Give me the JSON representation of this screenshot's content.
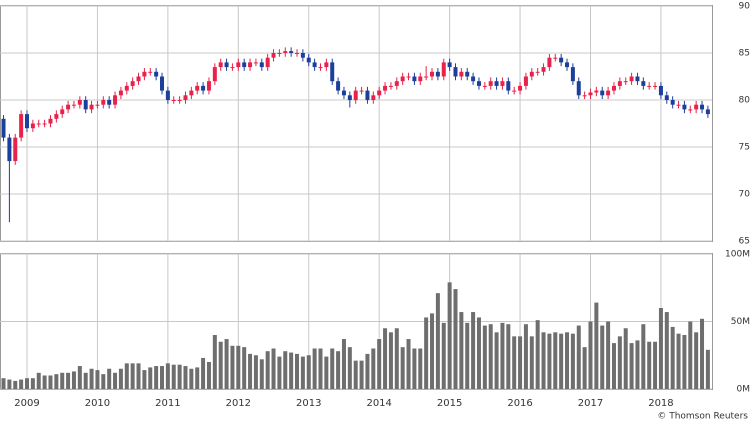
{
  "chart_data": [
    {
      "type": "candlestick",
      "open": [
        78,
        76,
        73.5,
        76,
        78.5,
        77,
        77.5,
        77.5,
        77.5,
        78,
        78.5,
        79,
        79.5,
        79.5,
        80,
        79,
        79.5,
        79.5,
        80,
        79.5,
        80.5,
        81,
        81.5,
        82,
        82.5,
        83,
        83,
        82.5,
        81,
        80,
        80,
        80,
        80.5,
        81,
        81.5,
        81,
        82,
        83.5,
        84,
        83.5,
        83.5,
        84,
        83.5,
        84,
        84,
        83.5,
        84.5,
        85,
        85,
        85.2,
        85,
        85,
        84.5,
        84,
        83.5,
        83.5,
        84,
        82,
        81,
        80.5,
        80,
        81,
        81,
        80,
        80.5,
        81,
        81.5,
        81.5,
        82,
        82.5,
        82.5,
        82,
        82.5,
        82.5,
        83,
        82.5,
        84,
        83.5,
        82.5,
        83,
        82.5,
        82,
        81.5,
        81.5,
        82,
        81.5,
        82,
        81,
        81,
        81.5,
        82.5,
        83,
        83,
        83.5,
        84.5,
        84.5,
        84,
        83.5,
        82,
        80.5,
        80.5,
        80.8,
        81,
        80.5,
        81,
        81.5,
        82,
        82,
        82.5,
        82,
        81.5,
        81.5,
        81.5,
        80.5,
        80,
        79.5,
        79.5,
        79,
        79,
        79.5,
        79
      ],
      "high": [
        78.4,
        76.4,
        76.4,
        78.9,
        78.9,
        77.9,
        77.9,
        77.9,
        78.4,
        78.9,
        79.4,
        79.9,
        79.9,
        80.4,
        80.4,
        79.9,
        79.9,
        80.4,
        80.4,
        80.9,
        81.4,
        81.9,
        82.4,
        82.9,
        83.4,
        83.4,
        83.4,
        82.9,
        81.4,
        80.4,
        80.4,
        80.9,
        81.4,
        81.9,
        81.9,
        82.4,
        83.9,
        84.4,
        84.4,
        83.9,
        84.4,
        84.4,
        84.4,
        84.4,
        84.4,
        84.9,
        85.4,
        85.4,
        85.6,
        85.6,
        85.4,
        85.4,
        84.9,
        84.4,
        83.9,
        84.4,
        84.4,
        82.4,
        81.4,
        80.9,
        81.4,
        81.4,
        81.4,
        80.9,
        81.4,
        81.9,
        81.9,
        82.4,
        82.9,
        82.9,
        82.9,
        82.9,
        83.6,
        83.4,
        83.4,
        84.4,
        84.4,
        83.9,
        83.4,
        83.4,
        82.9,
        82.4,
        81.9,
        82.4,
        82.4,
        82.4,
        82.4,
        81.4,
        81.9,
        82.9,
        83.4,
        83.4,
        83.9,
        84.9,
        84.9,
        84.9,
        84.4,
        83.9,
        82.4,
        80.9,
        81.2,
        81.4,
        81.4,
        81.4,
        81.9,
        82.4,
        82.4,
        82.9,
        82.9,
        82.4,
        81.9,
        81.9,
        81.9,
        80.9,
        80.4,
        79.9,
        79.9,
        79.4,
        79.9,
        79.9,
        79.4
      ],
      "low": [
        75.6,
        67,
        73.1,
        75.6,
        76.6,
        76.6,
        77.1,
        77.1,
        77.1,
        77.6,
        78.1,
        78.6,
        79.1,
        79.1,
        78.6,
        78.6,
        79.1,
        79.1,
        79.1,
        79.1,
        80.1,
        80.6,
        81.1,
        81.6,
        82.1,
        82.6,
        82.1,
        80.6,
        79.6,
        79.6,
        79.6,
        79.6,
        80.1,
        80.6,
        80.6,
        80.6,
        81.6,
        83.1,
        83.1,
        83.1,
        83.1,
        83.1,
        83.1,
        83.6,
        83.1,
        83.1,
        84.1,
        84.6,
        84.6,
        84.6,
        84.6,
        84.1,
        83.6,
        83.1,
        83.1,
        83.1,
        81.6,
        80.6,
        80.1,
        79.2,
        79.6,
        80.6,
        79.6,
        79.6,
        80.1,
        80.6,
        81.1,
        81.1,
        81.6,
        82.1,
        81.6,
        81.6,
        82.1,
        82.1,
        82.1,
        82.1,
        83.1,
        82.1,
        82.1,
        82.1,
        81.6,
        81.1,
        81.1,
        81.1,
        81.1,
        81.1,
        80.6,
        80.6,
        80.6,
        81.1,
        82.1,
        82.6,
        82.6,
        83.1,
        84.1,
        83.6,
        83.1,
        81.6,
        80.1,
        80.1,
        80.1,
        80.4,
        80.1,
        80.1,
        80.6,
        81.1,
        81.6,
        81.6,
        81.6,
        81.1,
        81.1,
        81.1,
        80.1,
        79.6,
        79.1,
        79.1,
        78.6,
        78.6,
        78.6,
        78.6,
        78.1
      ],
      "close": [
        76,
        73.5,
        76,
        78.5,
        77,
        77.5,
        77.5,
        77.5,
        78,
        78.5,
        79,
        79.5,
        79.5,
        80,
        79,
        79.5,
        79.5,
        80,
        79.5,
        80.5,
        81,
        81.5,
        82,
        82.5,
        83,
        83,
        82.5,
        81,
        80,
        80,
        80,
        80.5,
        81,
        81.5,
        81,
        82,
        83.5,
        84,
        83.5,
        83.5,
        84,
        83.5,
        84,
        84,
        83.5,
        84.5,
        85,
        85,
        85.2,
        85,
        85,
        84.5,
        84,
        83.5,
        83.5,
        84,
        82,
        81,
        80.5,
        80,
        81,
        81,
        80,
        80.5,
        81,
        81.5,
        81.5,
        82,
        82.5,
        82.5,
        82,
        82.5,
        82.5,
        83,
        82.5,
        84,
        83.5,
        82.5,
        83,
        82.5,
        82,
        81.5,
        81.5,
        82,
        81.5,
        82,
        81,
        81,
        81.5,
        82.5,
        83,
        83,
        83.5,
        84.5,
        84.5,
        84,
        83.5,
        82,
        80.5,
        80.5,
        80.8,
        81,
        80.5,
        81,
        81.5,
        82,
        82,
        82.5,
        82,
        81.5,
        81.5,
        81.5,
        80.5,
        80,
        79.5,
        79.5,
        79,
        79,
        79.5,
        79,
        78.5
      ],
      "up_color": "#e8224a",
      "down_color": "#1c3f9c",
      "xlim": [
        -0.6,
        120.7
      ],
      "ylim": [
        65,
        90
      ],
      "yticks": [
        65,
        70,
        75,
        80,
        85,
        90
      ],
      "grid": true
    },
    {
      "type": "bar",
      "values": [
        8,
        7,
        6,
        7,
        8,
        8,
        12,
        10,
        10,
        11,
        12,
        12,
        13,
        17,
        12,
        15,
        14,
        11,
        15,
        12,
        15,
        19,
        19,
        19,
        14,
        16,
        17,
        17,
        19,
        18,
        18,
        17,
        15,
        16,
        23,
        20,
        40,
        35,
        37,
        32,
        32,
        31,
        26,
        25,
        22,
        28,
        30,
        24,
        28,
        27,
        26,
        24,
        25,
        30,
        30,
        24,
        30,
        28,
        37,
        31,
        21,
        21,
        26,
        30,
        37,
        45,
        42,
        45,
        31,
        37,
        30,
        30,
        53,
        56,
        71,
        49,
        79,
        74,
        57,
        49,
        57,
        53,
        47,
        48,
        42,
        49,
        48,
        39,
        39,
        48,
        39,
        51,
        42,
        41,
        42,
        41,
        42,
        41,
        47,
        31,
        50,
        64,
        47,
        50,
        34,
        39,
        45,
        34,
        36,
        48,
        35,
        35,
        60,
        57,
        46,
        41,
        40,
        50,
        42,
        52,
        29
      ],
      "color": "#6e6e6e",
      "xlim": [
        -0.6,
        120.7
      ],
      "xticks": [
        {
          "value": 4,
          "label": "2009"
        },
        {
          "value": 16,
          "label": "2010"
        },
        {
          "value": 28,
          "label": "2011"
        },
        {
          "value": 40,
          "label": "2012"
        },
        {
          "value": 52,
          "label": "2013"
        },
        {
          "value": 64,
          "label": "2014"
        },
        {
          "value": 76,
          "label": "2015"
        },
        {
          "value": 88,
          "label": "2016"
        },
        {
          "value": 100,
          "label": "2017"
        },
        {
          "value": 112,
          "label": "2018"
        }
      ],
      "ylim": [
        0,
        100
      ],
      "yticks": [
        {
          "value": 0,
          "label": "0M"
        },
        {
          "value": 50,
          "label": "50M"
        },
        {
          "value": 100,
          "label": "100M"
        }
      ],
      "grid": true
    }
  ],
  "source": "© Thomson Reuters"
}
